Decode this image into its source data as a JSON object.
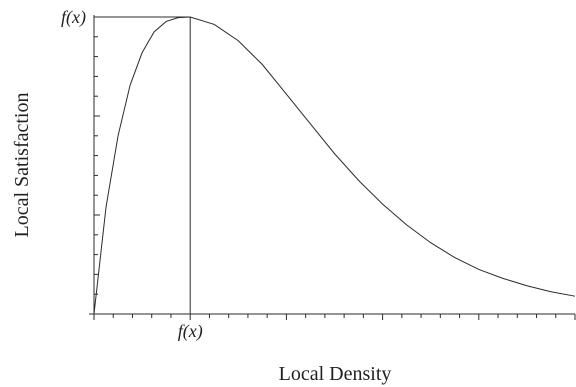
{
  "chart_data": {
    "type": "line",
    "title": "",
    "xlabel": "Local Density",
    "ylabel": "Local Satisfaction",
    "xlim": [
      0,
      10
    ],
    "ylim": [
      0,
      1
    ],
    "x_ticks_count": 25,
    "y_ticks_count": 15,
    "grid": false,
    "legend": "none",
    "peak": {
      "x": 2,
      "y": 1
    },
    "peak_x_label": "f(x)",
    "peak_y_label": "f(x)",
    "series": [
      {
        "x": [
          0,
          0.25,
          0.5,
          0.75,
          1,
          1.25,
          1.5,
          1.75,
          2,
          2.5,
          3,
          3.5,
          4,
          4.5,
          5,
          5.5,
          6,
          6.5,
          7,
          7.5,
          8,
          8.5,
          9,
          9.5,
          10
        ],
        "values": [
          0,
          0.36,
          0.6,
          0.77,
          0.88,
          0.95,
          0.985,
          0.998,
          1.0,
          0.975,
          0.92,
          0.84,
          0.74,
          0.64,
          0.54,
          0.45,
          0.37,
          0.3,
          0.24,
          0.19,
          0.15,
          0.12,
          0.095,
          0.075,
          0.06
        ]
      }
    ]
  }
}
